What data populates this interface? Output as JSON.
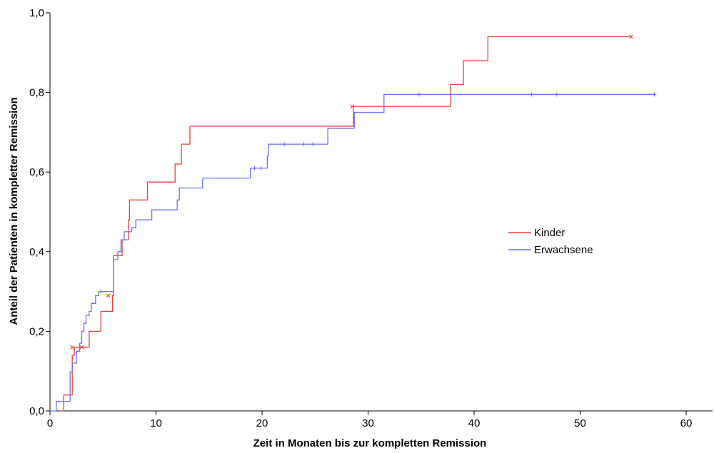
{
  "chart_data": {
    "type": "line",
    "xlabel": "Zeit in Monaten bis zur kompletten Remission",
    "ylabel": "Anteil der Patienten in kompletter Remission",
    "xlim": [
      0,
      60
    ],
    "ylim": [
      0,
      1.0
    ],
    "x_ticks": [
      0,
      10,
      20,
      30,
      40,
      50,
      60
    ],
    "x_tick_labels": [
      "0",
      "10",
      "20",
      "30",
      "40",
      "50",
      "60"
    ],
    "y_ticks": [
      0,
      0.2,
      0.4,
      0.6,
      0.8,
      1.0
    ],
    "y_tick_labels": [
      "0,0",
      "0,2",
      "0,4",
      "0,6",
      "0,8",
      "1,0"
    ],
    "grid": false,
    "legend_position": "right",
    "step": true,
    "series": [
      {
        "name": "Kinder",
        "color": "#e8413c",
        "censor_marker": "x",
        "points": [
          [
            1.0,
            0.0
          ],
          [
            1.3,
            0.04
          ],
          [
            2.0,
            0.04
          ],
          [
            2.1,
            0.14
          ],
          [
            2.3,
            0.16
          ],
          [
            3.5,
            0.16
          ],
          [
            3.7,
            0.2
          ],
          [
            4.6,
            0.2
          ],
          [
            4.8,
            0.25
          ],
          [
            5.9,
            0.29
          ],
          [
            6.0,
            0.39
          ],
          [
            6.7,
            0.39
          ],
          [
            6.8,
            0.43
          ],
          [
            7.4,
            0.48
          ],
          [
            7.5,
            0.53
          ],
          [
            9.1,
            0.53
          ],
          [
            9.2,
            0.575
          ],
          [
            11.7,
            0.575
          ],
          [
            11.8,
            0.62
          ],
          [
            12.3,
            0.62
          ],
          [
            12.4,
            0.67
          ],
          [
            13.1,
            0.67
          ],
          [
            13.2,
            0.715
          ],
          [
            28.5,
            0.715
          ],
          [
            28.6,
            0.765
          ],
          [
            37.7,
            0.765
          ],
          [
            37.8,
            0.82
          ],
          [
            38.9,
            0.82
          ],
          [
            39.0,
            0.88
          ],
          [
            41.2,
            0.88
          ],
          [
            41.3,
            0.94
          ],
          [
            54.8,
            0.94
          ]
        ],
        "censored": [
          [
            2.1,
            0.16
          ],
          [
            3.0,
            0.16
          ],
          [
            5.5,
            0.29
          ],
          [
            28.5,
            0.765
          ],
          [
            54.8,
            0.94
          ]
        ]
      },
      {
        "name": "Erwachsene",
        "color": "#6b6ff2",
        "censor_marker": "+",
        "points": [
          [
            0.0,
            0.0
          ],
          [
            0.5,
            0.0
          ],
          [
            0.6,
            0.024
          ],
          [
            1.8,
            0.024
          ],
          [
            1.9,
            0.098
          ],
          [
            2.0,
            0.098
          ],
          [
            2.1,
            0.12
          ],
          [
            2.5,
            0.15
          ],
          [
            2.8,
            0.17
          ],
          [
            3.0,
            0.2
          ],
          [
            3.2,
            0.22
          ],
          [
            3.4,
            0.24
          ],
          [
            3.7,
            0.25
          ],
          [
            3.9,
            0.27
          ],
          [
            4.3,
            0.29
          ],
          [
            4.6,
            0.3
          ],
          [
            5.9,
            0.3
          ],
          [
            6.0,
            0.38
          ],
          [
            6.4,
            0.4
          ],
          [
            6.7,
            0.43
          ],
          [
            7.0,
            0.45
          ],
          [
            7.6,
            0.45
          ],
          [
            7.7,
            0.46
          ],
          [
            8.1,
            0.48
          ],
          [
            9.5,
            0.48
          ],
          [
            9.6,
            0.505
          ],
          [
            11.9,
            0.505
          ],
          [
            12.0,
            0.53
          ],
          [
            12.2,
            0.56
          ],
          [
            14.3,
            0.56
          ],
          [
            14.4,
            0.585
          ],
          [
            18.8,
            0.585
          ],
          [
            18.9,
            0.61
          ],
          [
            20.4,
            0.61
          ],
          [
            20.5,
            0.64
          ],
          [
            20.6,
            0.67
          ],
          [
            26.1,
            0.67
          ],
          [
            26.2,
            0.71
          ],
          [
            28.6,
            0.71
          ],
          [
            28.7,
            0.75
          ],
          [
            31.4,
            0.75
          ],
          [
            31.5,
            0.795
          ],
          [
            57.0,
            0.795
          ]
        ],
        "censored": [
          [
            4.8,
            0.3
          ],
          [
            19.3,
            0.61
          ],
          [
            19.9,
            0.61
          ],
          [
            22.1,
            0.67
          ],
          [
            23.9,
            0.67
          ],
          [
            24.8,
            0.67
          ],
          [
            34.8,
            0.795
          ],
          [
            45.4,
            0.795
          ],
          [
            47.8,
            0.795
          ],
          [
            57.0,
            0.795
          ]
        ]
      }
    ]
  }
}
